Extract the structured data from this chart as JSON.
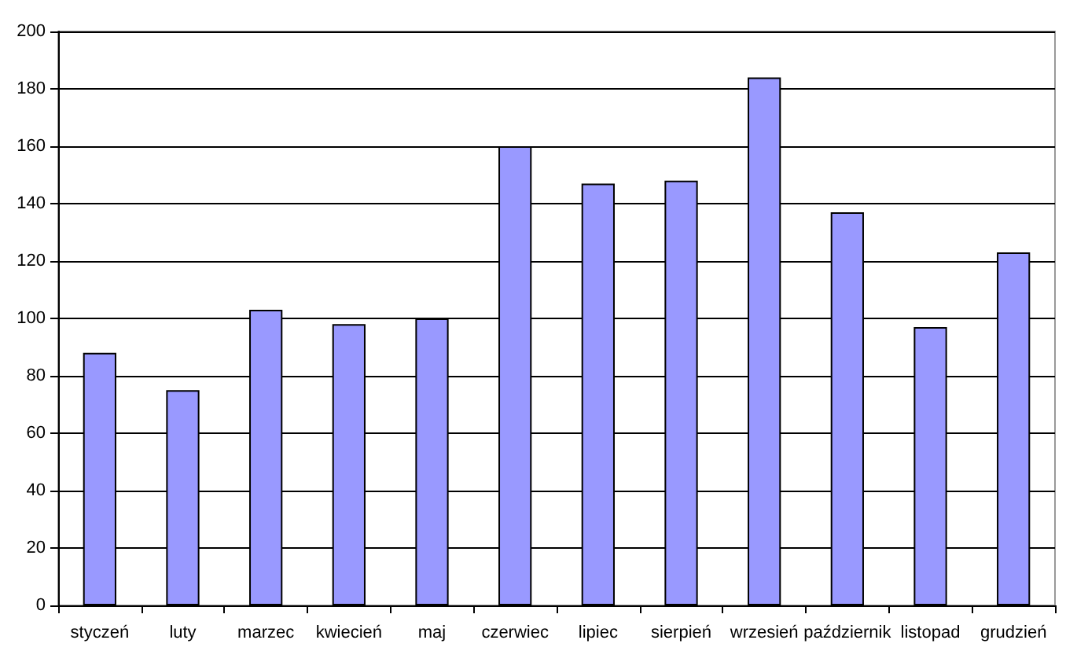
{
  "chart_data": {
    "type": "bar",
    "categories": [
      "styczeń",
      "luty",
      "marzec",
      "kwiecień",
      "maj",
      "czerwiec",
      "lipiec",
      "sierpień",
      "wrzesień",
      "październik",
      "listopad",
      "grudzień"
    ],
    "values": [
      88,
      75,
      103,
      98,
      100,
      160,
      147,
      148,
      184,
      137,
      97,
      123
    ],
    "color": "#9999ff",
    "ylim": [
      0,
      200
    ],
    "yticks": [
      0,
      20,
      40,
      60,
      80,
      100,
      120,
      140,
      160,
      180,
      200
    ],
    "grid": "y"
  }
}
